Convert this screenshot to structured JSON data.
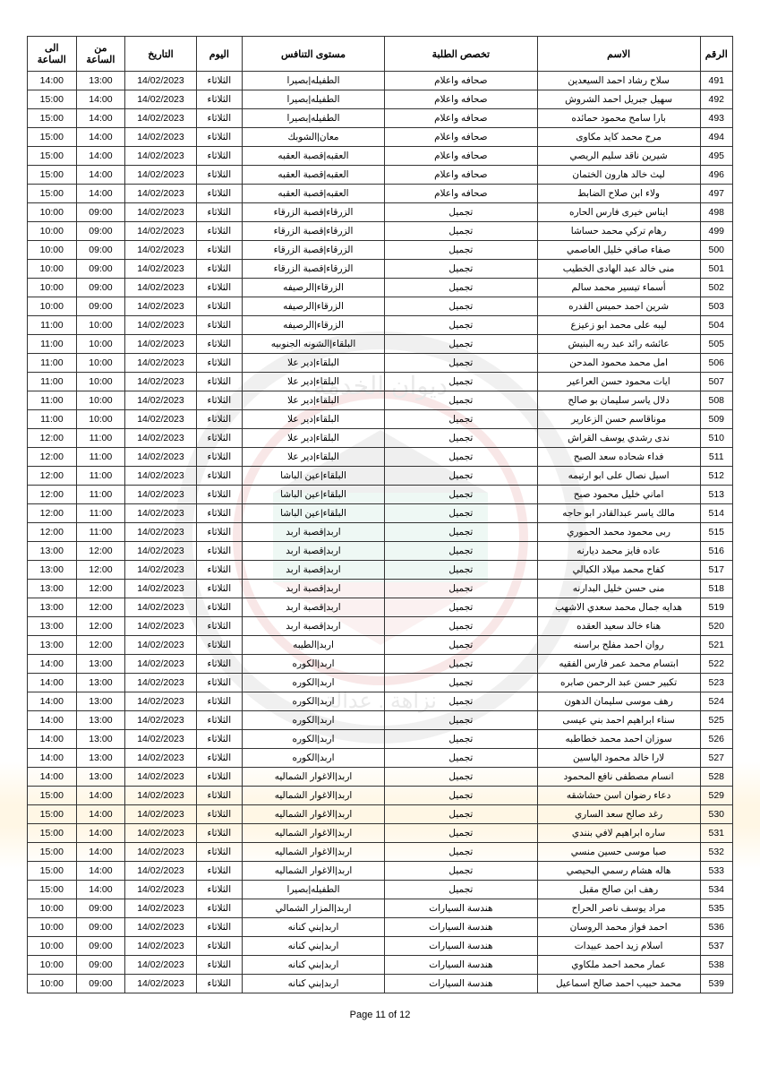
{
  "headers": {
    "num": "الرقم",
    "name": "الاسم",
    "spec": "تخصص الطلبة",
    "level": "مستوى التنافس",
    "day": "اليوم",
    "date": "التاريخ",
    "from": "من الساعة",
    "to": "الى الساعة"
  },
  "footer": "Page 11  of 12",
  "rows": [
    {
      "num": "491",
      "name": "سلاح رشاد احمد السيعدين",
      "spec": "صحافه واعلام",
      "level": "الطفيله|بصيرا",
      "day": "الثلاثاء",
      "date": "14/02/2023",
      "from": "13:00",
      "to": "14:00"
    },
    {
      "num": "492",
      "name": "سهيل جبريل احمد الشروش",
      "spec": "صحافه واعلام",
      "level": "الطفيله|بصيرا",
      "day": "الثلاثاء",
      "date": "14/02/2023",
      "from": "14:00",
      "to": "15:00"
    },
    {
      "num": "493",
      "name": "بارا سامح محمود حمائده",
      "spec": "صحافه واعلام",
      "level": "الطفيله|بصيرا",
      "day": "الثلاثاء",
      "date": "14/02/2023",
      "from": "14:00",
      "to": "15:00"
    },
    {
      "num": "494",
      "name": "مرح محمد كايد مكاوى",
      "spec": "صحافه واعلام",
      "level": "معان|الشوبك",
      "day": "الثلاثاء",
      "date": "14/02/2023",
      "from": "14:00",
      "to": "15:00"
    },
    {
      "num": "495",
      "name": "شيرين ناقد سليم الريصي",
      "spec": "صحافه واعلام",
      "level": "العقبه|قصبة العقبه",
      "day": "الثلاثاء",
      "date": "14/02/2023",
      "from": "14:00",
      "to": "15:00"
    },
    {
      "num": "496",
      "name": "ليث خالد هارون الختمان",
      "spec": "صحافه واعلام",
      "level": "العقبه|قصبة العقبه",
      "day": "الثلاثاء",
      "date": "14/02/2023",
      "from": "14:00",
      "to": "15:00"
    },
    {
      "num": "497",
      "name": "ولاء ابن صلاح الضابط",
      "spec": "صحافه واعلام",
      "level": "العقبه|قصبة العقبه",
      "day": "الثلاثاء",
      "date": "14/02/2023",
      "from": "14:00",
      "to": "15:00"
    },
    {
      "num": "498",
      "name": "ايناس خيرى فارس الحاره",
      "spec": "تجميل",
      "level": "الزرقاء|قصبة الزرقاء",
      "day": "الثلاثاء",
      "date": "14/02/2023",
      "from": "09:00",
      "to": "10:00"
    },
    {
      "num": "499",
      "name": "رهام تركي محمد حساشا",
      "spec": "تجميل",
      "level": "الزرقاء|قصبة الزرقاء",
      "day": "الثلاثاء",
      "date": "14/02/2023",
      "from": "09:00",
      "to": "10:00"
    },
    {
      "num": "500",
      "name": "صفاء صافي خليل العاصمي",
      "spec": "تجميل",
      "level": "الزرقاء|قصبة الزرقاء",
      "day": "الثلاثاء",
      "date": "14/02/2023",
      "from": "09:00",
      "to": "10:00"
    },
    {
      "num": "501",
      "name": "منى خالد عبد الهادى الخطيب",
      "spec": "تجميل",
      "level": "الزرقاء|قصبة الزرقاء",
      "day": "الثلاثاء",
      "date": "14/02/2023",
      "from": "09:00",
      "to": "10:00"
    },
    {
      "num": "502",
      "name": "أسماء تيسير محمد سالم",
      "spec": "تجميل",
      "level": "الزرقاء|الرصيفه",
      "day": "الثلاثاء",
      "date": "14/02/2023",
      "from": "09:00",
      "to": "10:00"
    },
    {
      "num": "503",
      "name": "شرين احمد حميس القدره",
      "spec": "تجميل",
      "level": "الزرقاء|الرصيفه",
      "day": "الثلاثاء",
      "date": "14/02/2023",
      "from": "09:00",
      "to": "10:00"
    },
    {
      "num": "504",
      "name": "ليبه على محمد ابو زعيزع",
      "spec": "تجميل",
      "level": "الزرقاء|الرصيفه",
      "day": "الثلاثاء",
      "date": "14/02/2023",
      "from": "10:00",
      "to": "11:00"
    },
    {
      "num": "505",
      "name": "عائشه رائد عبد ربه البنيش",
      "spec": "تجميل",
      "level": "البلقاء|الشونه الجنوبيه",
      "day": "الثلاثاء",
      "date": "14/02/2023",
      "from": "10:00",
      "to": "11:00"
    },
    {
      "num": "506",
      "name": "امل محمد محمود المدحن",
      "spec": "تجميل",
      "level": "البلقاء|دير علا",
      "day": "الثلاثاء",
      "date": "14/02/2023",
      "from": "10:00",
      "to": "11:00"
    },
    {
      "num": "507",
      "name": "ايات محمود حسن العراعير",
      "spec": "تجميل",
      "level": "البلقاء|دير علا",
      "day": "الثلاثاء",
      "date": "14/02/2023",
      "from": "10:00",
      "to": "11:00"
    },
    {
      "num": "508",
      "name": "دلال ياسر سليمان بو صالح",
      "spec": "تجميل",
      "level": "البلقاء|دير علا",
      "day": "الثلاثاء",
      "date": "14/02/2023",
      "from": "10:00",
      "to": "11:00"
    },
    {
      "num": "509",
      "name": "موناقاسم حسن الزعارير",
      "spec": "تجميل",
      "level": "البلقاء|دير علا",
      "day": "الثلاثاء",
      "date": "14/02/2023",
      "from": "10:00",
      "to": "11:00"
    },
    {
      "num": "510",
      "name": "ندى رشدي يوسف القراش",
      "spec": "تجميل",
      "level": "البلقاء|دير علا",
      "day": "الثلاثاء",
      "date": "14/02/2023",
      "from": "11:00",
      "to": "12:00"
    },
    {
      "num": "511",
      "name": "فداء شحاده سعد الصبح",
      "spec": "تجميل",
      "level": "البلقاء|دير علا",
      "day": "الثلاثاء",
      "date": "14/02/2023",
      "from": "11:00",
      "to": "12:00"
    },
    {
      "num": "512",
      "name": "اسيل نصال على ابو ارتيمه",
      "spec": "تجميل",
      "level": "البلقاء|عين الباشا",
      "day": "الثلاثاء",
      "date": "14/02/2023",
      "from": "11:00",
      "to": "12:00"
    },
    {
      "num": "513",
      "name": "اماني خليل محمود صبح",
      "spec": "تجميل",
      "level": "البلقاء|عين الباشا",
      "day": "الثلاثاء",
      "date": "14/02/2023",
      "from": "11:00",
      "to": "12:00"
    },
    {
      "num": "514",
      "name": "مالك ياسر عبدالقادر ابو حاجه",
      "spec": "تجميل",
      "level": "البلقاء|عين الباشا",
      "day": "الثلاثاء",
      "date": "14/02/2023",
      "from": "11:00",
      "to": "12:00"
    },
    {
      "num": "515",
      "name": "ربى محمود محمد الحموري",
      "spec": "تجميل",
      "level": "اربد|قصبة اربد",
      "day": "الثلاثاء",
      "date": "14/02/2023",
      "from": "11:00",
      "to": "12:00"
    },
    {
      "num": "516",
      "name": "عاده فايز محمد ديارنه",
      "spec": "تجميل",
      "level": "اربد|قصبة اربد",
      "day": "الثلاثاء",
      "date": "14/02/2023",
      "from": "12:00",
      "to": "13:00"
    },
    {
      "num": "517",
      "name": "كفاح محمد ميلاد الكيالي",
      "spec": "تجميل",
      "level": "اربد|قصبة اربد",
      "day": "الثلاثاء",
      "date": "14/02/2023",
      "from": "12:00",
      "to": "13:00"
    },
    {
      "num": "518",
      "name": "منى حسن خليل البدارنه",
      "spec": "تجميل",
      "level": "اربد|قصبة اربد",
      "day": "الثلاثاء",
      "date": "14/02/2023",
      "from": "12:00",
      "to": "13:00"
    },
    {
      "num": "519",
      "name": "هدايه جمال محمد سعدي الاشهب",
      "spec": "تجميل",
      "level": "اربد|قصبة اربد",
      "day": "الثلاثاء",
      "date": "14/02/2023",
      "from": "12:00",
      "to": "13:00"
    },
    {
      "num": "520",
      "name": "هناء خالد سعيد العقده",
      "spec": "تجميل",
      "level": "اربد|قصبة اربد",
      "day": "الثلاثاء",
      "date": "14/02/2023",
      "from": "12:00",
      "to": "13:00"
    },
    {
      "num": "521",
      "name": "روان احمد مفلح براسنه",
      "spec": "تجميل",
      "level": "اربد|الطيبه",
      "day": "الثلاثاء",
      "date": "14/02/2023",
      "from": "12:00",
      "to": "13:00"
    },
    {
      "num": "522",
      "name": "ابتسام محمد عمر فارس الفقيه",
      "spec": "تجميل",
      "level": "اربد|الكوره",
      "day": "الثلاثاء",
      "date": "14/02/2023",
      "from": "13:00",
      "to": "14:00"
    },
    {
      "num": "523",
      "name": "تكبير حسن عبد الرحمن صابره",
      "spec": "تجميل",
      "level": "اربد|الكوره",
      "day": "الثلاثاء",
      "date": "14/02/2023",
      "from": "13:00",
      "to": "14:00"
    },
    {
      "num": "524",
      "name": "رهف موسى سليمان الدهون",
      "spec": "تجميل",
      "level": "اربد|الكوره",
      "day": "الثلاثاء",
      "date": "14/02/2023",
      "from": "13:00",
      "to": "14:00"
    },
    {
      "num": "525",
      "name": "سناء ابراهيم احمد بني عيسى",
      "spec": "تجميل",
      "level": "اربد|الكوره",
      "day": "الثلاثاء",
      "date": "14/02/2023",
      "from": "13:00",
      "to": "14:00"
    },
    {
      "num": "526",
      "name": "سوزان احمد محمد خطاطبه",
      "spec": "تجميل",
      "level": "اربد|الكوره",
      "day": "الثلاثاء",
      "date": "14/02/2023",
      "from": "13:00",
      "to": "14:00"
    },
    {
      "num": "527",
      "name": "لارا خالد محمود الياسين",
      "spec": "تجميل",
      "level": "اربد|الكوره",
      "day": "الثلاثاء",
      "date": "14/02/2023",
      "from": "13:00",
      "to": "14:00"
    },
    {
      "num": "528",
      "name": "انسام مصطفى نافع المحمود",
      "spec": "تجميل",
      "level": "اربد|الاغوار الشماليه",
      "day": "الثلاثاء",
      "date": "14/02/2023",
      "from": "13:00",
      "to": "14:00"
    },
    {
      "num": "529",
      "name": "دعاء رضوان اسن حشاشقه",
      "spec": "تجميل",
      "level": "اربد|الاغوار الشماليه",
      "day": "الثلاثاء",
      "date": "14/02/2023",
      "from": "14:00",
      "to": "15:00"
    },
    {
      "num": "530",
      "name": "رغد صالح سعد الساري",
      "spec": "تجميل",
      "level": "اربد|الاغوار الشماليه",
      "day": "الثلاثاء",
      "date": "14/02/2023",
      "from": "14:00",
      "to": "15:00"
    },
    {
      "num": "531",
      "name": "ساره ابراهيم لافي بنندي",
      "spec": "تجميل",
      "level": "اربد|الاغوار الشماليه",
      "day": "الثلاثاء",
      "date": "14/02/2023",
      "from": "14:00",
      "to": "15:00"
    },
    {
      "num": "532",
      "name": "صبا موسى حسين منسي",
      "spec": "تجميل",
      "level": "اربد|الاغوار الشماليه",
      "day": "الثلاثاء",
      "date": "14/02/2023",
      "from": "14:00",
      "to": "15:00"
    },
    {
      "num": "533",
      "name": "هاله هشام رسمي البحيصي",
      "spec": "تجميل",
      "level": "اربد|الاغوار الشماليه",
      "day": "الثلاثاء",
      "date": "14/02/2023",
      "from": "14:00",
      "to": "15:00"
    },
    {
      "num": "534",
      "name": "رهف ابن صالح مقبل",
      "spec": "تجميل",
      "level": "الطفيله|بصيرا",
      "day": "الثلاثاء",
      "date": "14/02/2023",
      "from": "14:00",
      "to": "15:00"
    },
    {
      "num": "535",
      "name": "مراد يوسف ناصر الحراح",
      "spec": "هندسة السيارات",
      "level": "اربد|المزار الشمالي",
      "day": "الثلاثاء",
      "date": "14/02/2023",
      "from": "09:00",
      "to": "10:00"
    },
    {
      "num": "536",
      "name": "احمد فواز محمد الروسان",
      "spec": "هندسة السيارات",
      "level": "اربد|بني كنانه",
      "day": "الثلاثاء",
      "date": "14/02/2023",
      "from": "09:00",
      "to": "10:00"
    },
    {
      "num": "537",
      "name": "اسلام زيد احمد عبيدات",
      "spec": "هندسة السيارات",
      "level": "اربد|بني كنانه",
      "day": "الثلاثاء",
      "date": "14/02/2023",
      "from": "09:00",
      "to": "10:00"
    },
    {
      "num": "538",
      "name": "عمار محمد احمد ملكاوي",
      "spec": "هندسة السيارات",
      "level": "اربد|بني كنانه",
      "day": "الثلاثاء",
      "date": "14/02/2023",
      "from": "09:00",
      "to": "10:00"
    },
    {
      "num": "539",
      "name": "محمد حبيب احمد صالح اسماعيل",
      "spec": "هندسة السيارات",
      "level": "اربد|بني كنانه",
      "day": "الثلاثاء",
      "date": "14/02/2023",
      "from": "09:00",
      "to": "10:00"
    }
  ]
}
